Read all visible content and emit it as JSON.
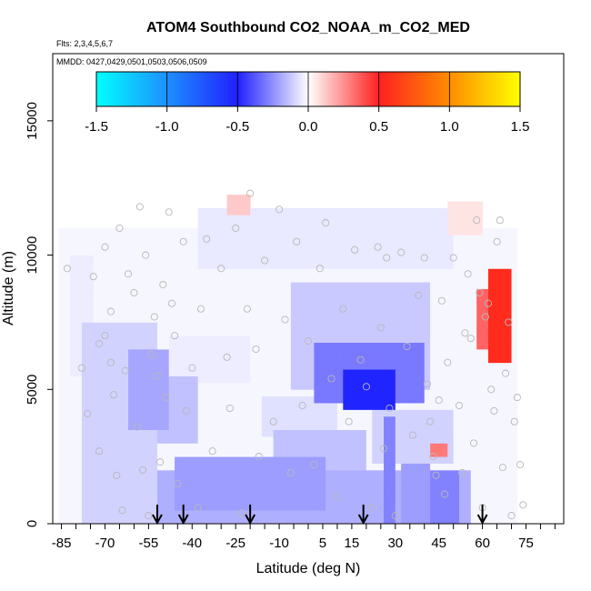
{
  "chart_data": {
    "type": "heatmap",
    "title": "ATOM4 Southbound CO2_NOAA_m_CO2_MED",
    "flights_label": "Flts: 2,3,4,5,6,7",
    "dates_label": "MMDD: 0427,0429,0501,0503,0506,0509",
    "xlabel": "Latitude (deg N)",
    "ylabel": "Altitude (m)",
    "xlim": [
      -88,
      88
    ],
    "ylim": [
      0,
      17500
    ],
    "x_ticks": [
      -85,
      -70,
      -55,
      -40,
      -25,
      -10,
      5,
      15,
      30,
      45,
      60,
      75
    ],
    "x_minor_step": 5,
    "y_ticks": [
      0,
      5000,
      10000,
      15000
    ],
    "colorbar": {
      "vmin": -1.5,
      "vmax": 1.5,
      "ticks": [
        "-1.5",
        "-1.0",
        "-0.5",
        "0.0",
        "0.5",
        "1.0",
        "1.5"
      ],
      "stops": [
        {
          "value": -1.5,
          "color": "#00ffff"
        },
        {
          "value": -1.0,
          "color": "#1e90ff"
        },
        {
          "value": -0.5,
          "color": "#2020ff"
        },
        {
          "value": 0.0,
          "color": "#ffffff"
        },
        {
          "value": 0.5,
          "color": "#ff2020"
        },
        {
          "value": 1.0,
          "color": "#ff8c00"
        },
        {
          "value": 1.5,
          "color": "#ffff00"
        }
      ]
    },
    "field_regions": [
      {
        "lat": [
          -81,
          -74
        ],
        "alt": [
          5500,
          10000
        ],
        "value": -0.04
      },
      {
        "lat": [
          -78,
          -52
        ],
        "alt": [
          0,
          7500
        ],
        "value": -0.1
      },
      {
        "lat": [
          -62,
          -48
        ],
        "alt": [
          3500,
          6500
        ],
        "value": -0.2
      },
      {
        "lat": [
          -52,
          -38
        ],
        "alt": [
          3000,
          5500
        ],
        "value": -0.14
      },
      {
        "lat": [
          -52,
          55
        ],
        "alt": [
          0,
          2000
        ],
        "value": -0.18
      },
      {
        "lat": [
          -45,
          5
        ],
        "alt": [
          600,
          2600
        ],
        "value": -0.22
      },
      {
        "lat": [
          -12,
          20
        ],
        "alt": [
          1500,
          3600
        ],
        "value": -0.14
      },
      {
        "lat": [
          -15,
          10
        ],
        "alt": [
          3300,
          4700
        ],
        "value": -0.07
      },
      {
        "lat": [
          -48,
          -20
        ],
        "alt": [
          5200,
          7000
        ],
        "value": -0.04
      },
      {
        "lat": [
          -38,
          50
        ],
        "alt": [
          9500,
          11800
        ],
        "value": -0.05
      },
      {
        "lat": [
          -5,
          42
        ],
        "alt": [
          5000,
          9000
        ],
        "value": -0.12
      },
      {
        "lat": [
          2,
          40
        ],
        "alt": [
          4600,
          6700
        ],
        "value": -0.3
      },
      {
        "lat": [
          12,
          30
        ],
        "alt": [
          4200,
          5800
        ],
        "value": -0.52
      },
      {
        "lat": [
          22,
          50
        ],
        "alt": [
          2200,
          4200
        ],
        "value": -0.1
      },
      {
        "lat": [
          26,
          30
        ],
        "alt": [
          0,
          4000
        ],
        "value": -0.28
      },
      {
        "lat": [
          32,
          42
        ],
        "alt": [
          0,
          2200
        ],
        "value": -0.22
      },
      {
        "lat": [
          42,
          52
        ],
        "alt": [
          0,
          2000
        ],
        "value": -0.28
      },
      {
        "lat": [
          -28,
          -20
        ],
        "alt": [
          11600,
          12300
        ],
        "value": 0.12
      },
      {
        "lat": [
          48,
          60
        ],
        "alt": [
          10800,
          12000
        ],
        "value": 0.06
      },
      {
        "lat": [
          42,
          47
        ],
        "alt": [
          2400,
          3000
        ],
        "value": 0.3
      },
      {
        "lat": [
          62,
          70
        ],
        "alt": [
          6000,
          9500
        ],
        "value": 0.55
      },
      {
        "lat": [
          58,
          70
        ],
        "alt": [
          6600,
          8800
        ],
        "value": 0.35
      },
      {
        "lat": [
          -86,
          72
        ],
        "alt": [
          0,
          11000
        ],
        "value": -0.02
      }
    ],
    "observation_points": [
      [
        -83,
        9500
      ],
      [
        -78,
        5800
      ],
      [
        -76,
        4100
      ],
      [
        -74,
        9200
      ],
      [
        -72,
        6700
      ],
      [
        -72,
        2700
      ],
      [
        -70,
        10300
      ],
      [
        -70,
        7000
      ],
      [
        -68,
        7900
      ],
      [
        -68,
        6000
      ],
      [
        -67,
        4800
      ],
      [
        -66,
        1800
      ],
      [
        -65,
        11000
      ],
      [
        -64,
        500
      ],
      [
        -63,
        5700
      ],
      [
        -62,
        9300
      ],
      [
        -60,
        8600
      ],
      [
        -59,
        3600
      ],
      [
        -58,
        11800
      ],
      [
        -57,
        2000
      ],
      [
        -56,
        10000
      ],
      [
        -55,
        300
      ],
      [
        -54,
        6300
      ],
      [
        -53,
        7700
      ],
      [
        -52,
        5500
      ],
      [
        -51,
        2300
      ],
      [
        -50,
        8900
      ],
      [
        -49,
        4700
      ],
      [
        -48,
        11600
      ],
      [
        -47,
        8200
      ],
      [
        -46,
        7000
      ],
      [
        -45,
        1500
      ],
      [
        -43,
        10500
      ],
      [
        -42,
        4200
      ],
      [
        -40,
        5800
      ],
      [
        -38,
        600
      ],
      [
        -37,
        8000
      ],
      [
        -35,
        10600
      ],
      [
        -33,
        2700
      ],
      [
        -30,
        9500
      ],
      [
        -28,
        6200
      ],
      [
        -27,
        4300
      ],
      [
        -25,
        11000
      ],
      [
        -23,
        400
      ],
      [
        -21,
        8000
      ],
      [
        -20,
        12300
      ],
      [
        -18,
        6500
      ],
      [
        -17,
        2500
      ],
      [
        -15,
        9800
      ],
      [
        -12,
        3800
      ],
      [
        -10,
        11700
      ],
      [
        -8,
        7600
      ],
      [
        -6,
        1900
      ],
      [
        -4,
        10500
      ],
      [
        -2,
        4400
      ],
      [
        0,
        6800
      ],
      [
        2,
        2200
      ],
      [
        4,
        9500
      ],
      [
        6,
        11200
      ],
      [
        8,
        5400
      ],
      [
        10,
        1000
      ],
      [
        12,
        8000
      ],
      [
        14,
        3800
      ],
      [
        16,
        10200
      ],
      [
        18,
        6100
      ],
      [
        20,
        5100
      ],
      [
        22,
        600
      ],
      [
        24,
        10300
      ],
      [
        25,
        7300
      ],
      [
        26,
        2800
      ],
      [
        27,
        9900
      ],
      [
        28,
        4300
      ],
      [
        30,
        300
      ],
      [
        32,
        10100
      ],
      [
        34,
        6600
      ],
      [
        36,
        3300
      ],
      [
        38,
        8500
      ],
      [
        40,
        9900
      ],
      [
        41,
        5200
      ],
      [
        42,
        3800
      ],
      [
        43,
        2500
      ],
      [
        44,
        1800
      ],
      [
        45,
        4600
      ],
      [
        46,
        8300
      ],
      [
        47,
        1100
      ],
      [
        48,
        6000
      ],
      [
        50,
        9900
      ],
      [
        52,
        4400
      ],
      [
        53,
        1900
      ],
      [
        54,
        7100
      ],
      [
        55,
        9300
      ],
      [
        56,
        6900
      ],
      [
        57,
        3000
      ],
      [
        58,
        11300
      ],
      [
        59,
        8600
      ],
      [
        60,
        600
      ],
      [
        61,
        7700
      ],
      [
        62,
        8200
      ],
      [
        63,
        5000
      ],
      [
        64,
        4200
      ],
      [
        65,
        10500
      ],
      [
        66,
        11300
      ],
      [
        67,
        2100
      ],
      [
        68,
        5600
      ],
      [
        69,
        7500
      ],
      [
        70,
        300
      ],
      [
        71,
        3800
      ],
      [
        72,
        4700
      ],
      [
        73,
        2200
      ],
      [
        74,
        700
      ]
    ],
    "arrows_lat": [
      -52,
      -43,
      -20,
      19,
      60
    ]
  }
}
